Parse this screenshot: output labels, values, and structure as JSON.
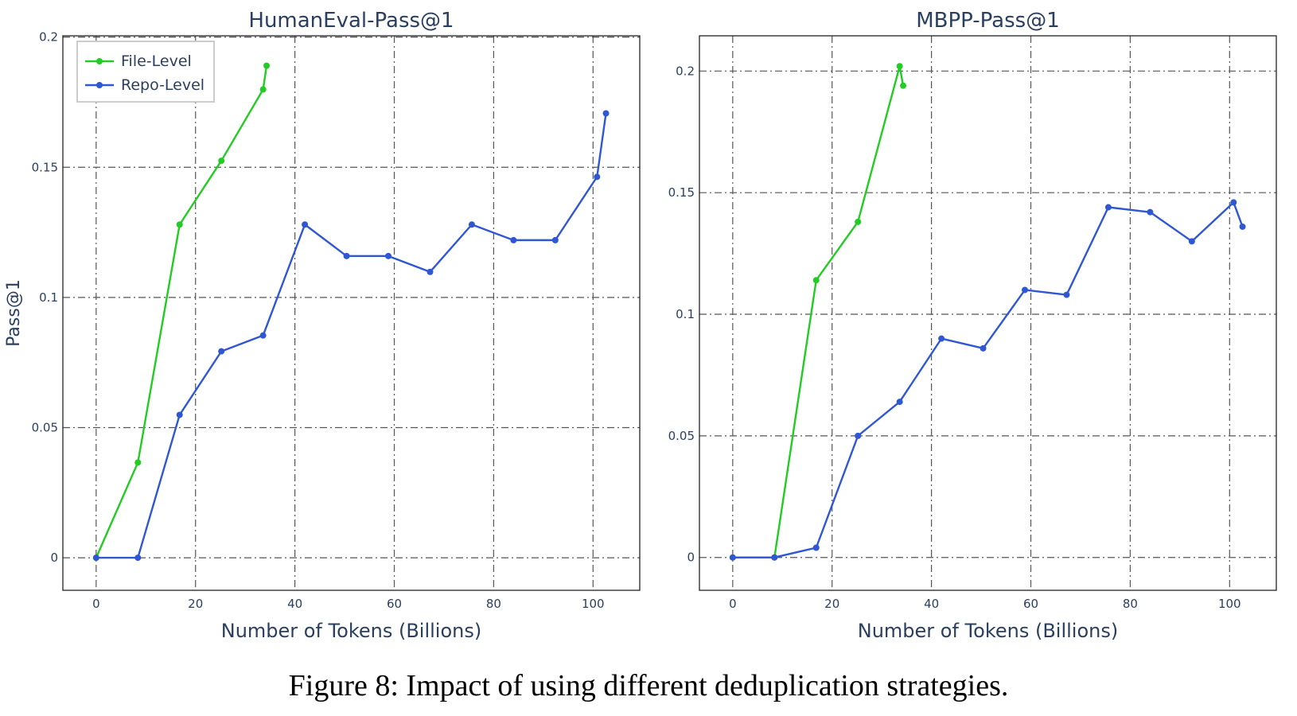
{
  "caption": "Figure 8: Impact of using different deduplication strategies.",
  "colors": {
    "file_level": "#22cc22",
    "repo_level": "#2f57d4",
    "grid": "#555555",
    "text": "#2a3f5f"
  },
  "chart_data": [
    {
      "type": "line",
      "title": "HumanEval-Pass@1",
      "xlabel": "Number of Tokens (Billions)",
      "ylabel": "Pass@1",
      "xlim": [
        -6.7,
        109.4
      ],
      "ylim": [
        -0.0125,
        0.2005
      ],
      "xticks": [
        0,
        20,
        40,
        60,
        80,
        100
      ],
      "xtick_labels": [
        "0",
        "20",
        "40",
        "60",
        "80",
        "100"
      ],
      "yticks": [
        0,
        0.05,
        0.1,
        0.15,
        0.2
      ],
      "ytick_labels": [
        "0",
        "0.05",
        "0.1",
        "0.15",
        "0.2"
      ],
      "grid": true,
      "legend_placement": "top-left",
      "series": [
        {
          "name": "File-Level",
          "color": "#22cc22",
          "x": [
            0,
            8.4,
            16.8,
            25.2,
            33.6,
            34.3
          ],
          "y": [
            0,
            0.0366,
            0.128,
            0.1525,
            0.1799,
            0.189
          ]
        },
        {
          "name": "Repo-Level",
          "color": "#2f57d4",
          "x": [
            0,
            8.4,
            16.8,
            25.2,
            33.6,
            42.0,
            50.4,
            58.8,
            67.2,
            75.6,
            84.0,
            92.4,
            100.8,
            102.6
          ],
          "y": [
            0,
            0,
            0.0549,
            0.0793,
            0.0854,
            0.128,
            0.1159,
            0.1159,
            0.1098,
            0.128,
            0.122,
            0.122,
            0.1463,
            0.1707
          ]
        }
      ]
    },
    {
      "type": "line",
      "title": "MBPP-Pass@1",
      "xlabel": "Number of Tokens (Billions)",
      "ylabel": "",
      "xlim": [
        -6.7,
        109.4
      ],
      "ylim": [
        -0.0135,
        0.2145
      ],
      "xticks": [
        0,
        20,
        40,
        60,
        80,
        100
      ],
      "xtick_labels": [
        "0",
        "20",
        "40",
        "60",
        "80",
        "100"
      ],
      "yticks": [
        0,
        0.05,
        0.1,
        0.15,
        0.2
      ],
      "ytick_labels": [
        "0",
        "0.05",
        "0.1",
        "0.15",
        "0.2"
      ],
      "grid": true,
      "legend_placement": "",
      "series": [
        {
          "name": "",
          "color": "#22cc22",
          "x": [
            0,
            8.4,
            16.8,
            25.2,
            33.6,
            34.3
          ],
          "y": [
            0,
            0,
            0.114,
            0.138,
            0.202,
            0.194
          ]
        },
        {
          "name": "",
          "color": "#2f57d4",
          "x": [
            0,
            8.4,
            16.8,
            25.2,
            33.6,
            42.0,
            50.4,
            58.8,
            67.2,
            75.6,
            84.0,
            92.4,
            100.8,
            102.6
          ],
          "y": [
            0,
            0,
            0.004,
            0.05,
            0.064,
            0.09,
            0.086,
            0.11,
            0.108,
            0.144,
            0.142,
            0.13,
            0.146,
            0.136
          ]
        }
      ]
    }
  ]
}
